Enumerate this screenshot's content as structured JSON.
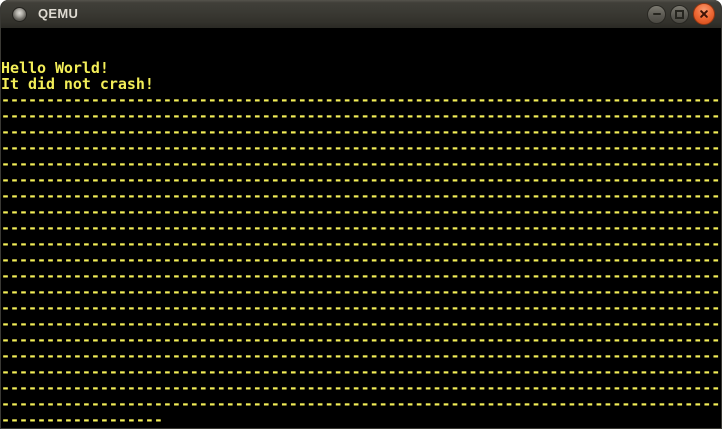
{
  "window": {
    "title": "QEMU",
    "titlebar_buttons": [
      {
        "name": "minimize",
        "icon": "minimize-icon"
      },
      {
        "name": "maximize",
        "icon": "maximize-icon"
      },
      {
        "name": "close",
        "icon": "close-icon"
      }
    ]
  },
  "colors": {
    "terminal_foreground": "#f3ee58",
    "terminal_background": "#000000",
    "titlebar_background": "#383731",
    "title_text": "#dfdbd2",
    "close_button_orange": "#e8632c",
    "gray_button": "#5f5d56"
  },
  "terminal": {
    "lines": [
      "",
      "",
      "Hello World!",
      "It did not crash!",
      "--------------------------------------------------------------------------------",
      "--------------------------------------------------------------------------------",
      "--------------------------------------------------------------------------------",
      "--------------------------------------------------------------------------------",
      "--------------------------------------------------------------------------------",
      "--------------------------------------------------------------------------------",
      "--------------------------------------------------------------------------------",
      "--------------------------------------------------------------------------------",
      "--------------------------------------------------------------------------------",
      "--------------------------------------------------------------------------------",
      "--------------------------------------------------------------------------------",
      "--------------------------------------------------------------------------------",
      "--------------------------------------------------------------------------------",
      "--------------------------------------------------------------------------------",
      "--------------------------------------------------------------------------------",
      "--------------------------------------------------------------------------------",
      "--------------------------------------------------------------------------------",
      "--------------------------------------------------------------------------------",
      "--------------------------------------------------------------------------------",
      "--------------------------------------------------------------------------------",
      "------------------"
    ]
  }
}
